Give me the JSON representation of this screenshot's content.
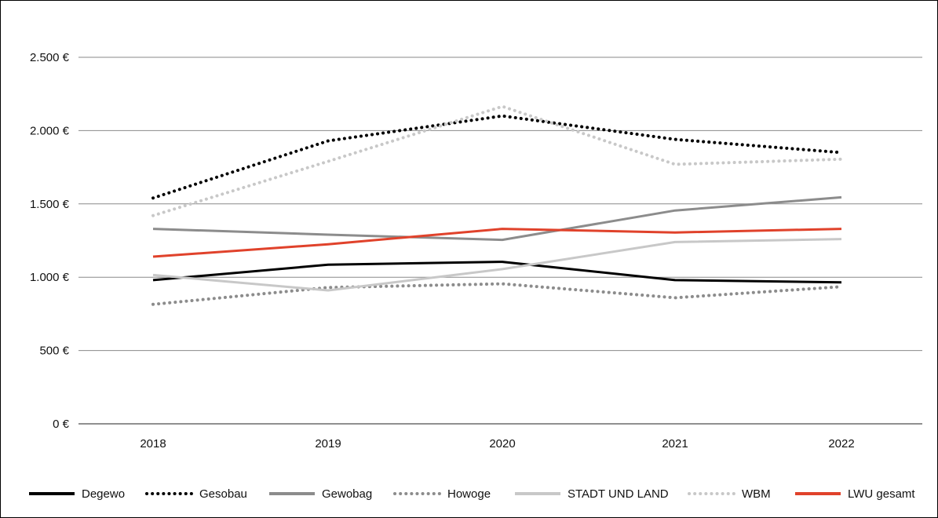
{
  "chart_data": {
    "type": "line",
    "x": [
      "2018",
      "2019",
      "2020",
      "2021",
      "2022"
    ],
    "ylim": [
      0,
      2500
    ],
    "y_ticks": [
      {
        "value": 0,
        "label": "0 €"
      },
      {
        "value": 500,
        "label": "500 €"
      },
      {
        "value": 1000,
        "label": "1.000 €"
      },
      {
        "value": 1500,
        "label": "1.500 €"
      },
      {
        "value": 2000,
        "label": "2.000 €"
      },
      {
        "value": 2500,
        "label": "2.500 €"
      }
    ],
    "grid": true,
    "legend_position": "bottom",
    "series": [
      {
        "name": "Degewo",
        "color": "#000000",
        "style": "solid",
        "values": [
          980,
          1085,
          1105,
          980,
          965
        ]
      },
      {
        "name": "Gesobau",
        "color": "#000000",
        "style": "dotted",
        "values": [
          1540,
          1930,
          2100,
          1940,
          1850
        ]
      },
      {
        "name": "Gewobag",
        "color": "#8c8c8c",
        "style": "solid",
        "values": [
          1330,
          1290,
          1255,
          1455,
          1545
        ]
      },
      {
        "name": "Howoge",
        "color": "#8c8c8c",
        "style": "dotted",
        "values": [
          815,
          930,
          955,
          860,
          935
        ]
      },
      {
        "name": "STADT UND LAND",
        "color": "#c8c8c8",
        "style": "solid",
        "values": [
          1015,
          910,
          1055,
          1240,
          1260
        ]
      },
      {
        "name": "WBM",
        "color": "#c8c8c8",
        "style": "dotted",
        "values": [
          1420,
          1790,
          2165,
          1770,
          1805
        ]
      },
      {
        "name": "LWU gesamt",
        "color": "#e0422b",
        "style": "solid",
        "values": [
          1140,
          1225,
          1330,
          1305,
          1330
        ]
      }
    ]
  }
}
